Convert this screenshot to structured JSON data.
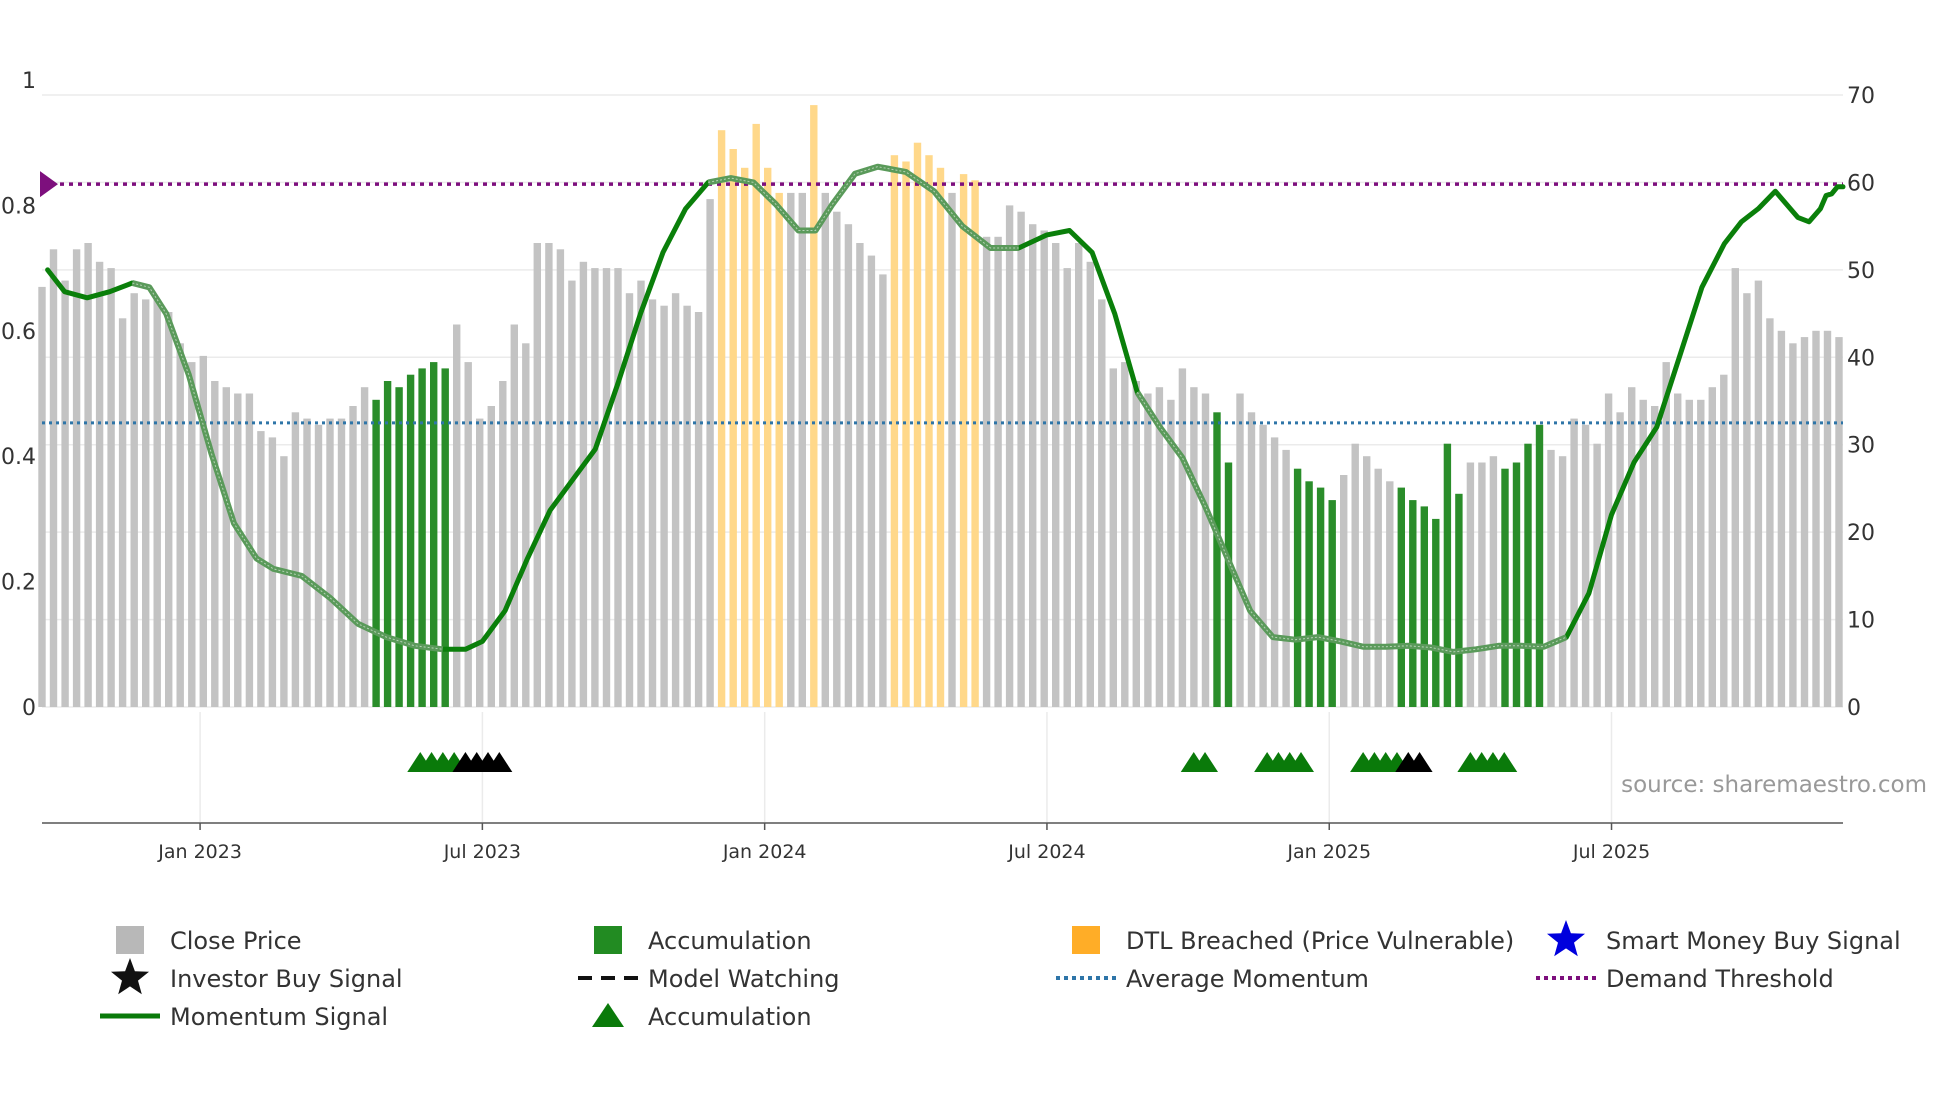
{
  "chart_data": {
    "type": "bar",
    "title": "",
    "source": "source: sharemaestro.com",
    "left_axis": {
      "min": 0,
      "max": 1,
      "ticks": [
        0,
        0.2,
        0.4,
        0.6,
        0.8,
        1
      ],
      "labels": [
        "0",
        "0.2",
        "0.4",
        "0.6",
        "0.8",
        "1"
      ]
    },
    "right_axis": {
      "min": 0,
      "max": 70,
      "ticks": [
        0,
        10,
        20,
        30,
        40,
        50,
        60,
        70
      ],
      "labels": [
        "0",
        "10",
        "20",
        "30",
        "40",
        "50",
        "60",
        "70"
      ]
    },
    "x_range": {
      "start": 2022.72,
      "end": 2025.91
    },
    "x_ticks": [
      {
        "label": "Jan 2023",
        "t": 2023.0
      },
      {
        "label": "Jul 2023",
        "t": 2023.5
      },
      {
        "label": "Jan 2024",
        "t": 2024.0
      },
      {
        "label": "Jul 2024",
        "t": 2024.5
      },
      {
        "label": "Jan 2025",
        "t": 2025.0
      },
      {
        "label": "Jul 2025",
        "t": 2025.5
      }
    ],
    "bar_states": [
      "close",
      "accumulation",
      "dtl_breached"
    ],
    "bars": [
      [
        0.67,
        "close"
      ],
      [
        0.73,
        "close"
      ],
      [
        0.68,
        "close"
      ],
      [
        0.73,
        "close"
      ],
      [
        0.74,
        "close"
      ],
      [
        0.71,
        "close"
      ],
      [
        0.7,
        "close"
      ],
      [
        0.62,
        "close"
      ],
      [
        0.66,
        "close"
      ],
      [
        0.65,
        "close"
      ],
      [
        0.65,
        "close"
      ],
      [
        0.63,
        "close"
      ],
      [
        0.58,
        "close"
      ],
      [
        0.55,
        "close"
      ],
      [
        0.56,
        "close"
      ],
      [
        0.52,
        "close"
      ],
      [
        0.51,
        "close"
      ],
      [
        0.5,
        "close"
      ],
      [
        0.5,
        "close"
      ],
      [
        0.44,
        "close"
      ],
      [
        0.43,
        "close"
      ],
      [
        0.4,
        "close"
      ],
      [
        0.47,
        "close"
      ],
      [
        0.46,
        "close"
      ],
      [
        0.45,
        "close"
      ],
      [
        0.46,
        "close"
      ],
      [
        0.46,
        "close"
      ],
      [
        0.48,
        "close"
      ],
      [
        0.51,
        "close"
      ],
      [
        0.49,
        "accumulation"
      ],
      [
        0.52,
        "accumulation"
      ],
      [
        0.51,
        "accumulation"
      ],
      [
        0.53,
        "accumulation"
      ],
      [
        0.54,
        "accumulation"
      ],
      [
        0.55,
        "accumulation"
      ],
      [
        0.54,
        "accumulation"
      ],
      [
        0.61,
        "close"
      ],
      [
        0.55,
        "close"
      ],
      [
        0.46,
        "close"
      ],
      [
        0.48,
        "close"
      ],
      [
        0.52,
        "close"
      ],
      [
        0.61,
        "close"
      ],
      [
        0.58,
        "close"
      ],
      [
        0.74,
        "close"
      ],
      [
        0.74,
        "close"
      ],
      [
        0.73,
        "close"
      ],
      [
        0.68,
        "close"
      ],
      [
        0.71,
        "close"
      ],
      [
        0.7,
        "close"
      ],
      [
        0.7,
        "close"
      ],
      [
        0.7,
        "close"
      ],
      [
        0.66,
        "close"
      ],
      [
        0.68,
        "close"
      ],
      [
        0.65,
        "close"
      ],
      [
        0.64,
        "close"
      ],
      [
        0.66,
        "close"
      ],
      [
        0.64,
        "close"
      ],
      [
        0.63,
        "close"
      ],
      [
        0.81,
        "close"
      ],
      [
        0.92,
        "dtl_breached"
      ],
      [
        0.89,
        "dtl_breached"
      ],
      [
        0.86,
        "dtl_breached"
      ],
      [
        0.93,
        "dtl_breached"
      ],
      [
        0.86,
        "dtl_breached"
      ],
      [
        0.82,
        "dtl_breached"
      ],
      [
        0.82,
        "close"
      ],
      [
        0.82,
        "close"
      ],
      [
        0.96,
        "dtl_breached"
      ],
      [
        0.82,
        "close"
      ],
      [
        0.79,
        "close"
      ],
      [
        0.77,
        "close"
      ],
      [
        0.74,
        "close"
      ],
      [
        0.72,
        "close"
      ],
      [
        0.69,
        "close"
      ],
      [
        0.88,
        "dtl_breached"
      ],
      [
        0.87,
        "dtl_breached"
      ],
      [
        0.9,
        "dtl_breached"
      ],
      [
        0.88,
        "dtl_breached"
      ],
      [
        0.86,
        "dtl_breached"
      ],
      [
        0.82,
        "close"
      ],
      [
        0.85,
        "dtl_breached"
      ],
      [
        0.84,
        "dtl_breached"
      ],
      [
        0.75,
        "close"
      ],
      [
        0.75,
        "close"
      ],
      [
        0.8,
        "close"
      ],
      [
        0.79,
        "close"
      ],
      [
        0.77,
        "close"
      ],
      [
        0.76,
        "close"
      ],
      [
        0.74,
        "close"
      ],
      [
        0.7,
        "close"
      ],
      [
        0.74,
        "close"
      ],
      [
        0.71,
        "close"
      ],
      [
        0.65,
        "close"
      ],
      [
        0.54,
        "close"
      ],
      [
        0.55,
        "close"
      ],
      [
        0.52,
        "close"
      ],
      [
        0.5,
        "close"
      ],
      [
        0.51,
        "close"
      ],
      [
        0.49,
        "close"
      ],
      [
        0.54,
        "close"
      ],
      [
        0.51,
        "close"
      ],
      [
        0.5,
        "close"
      ],
      [
        0.47,
        "accumulation"
      ],
      [
        0.39,
        "accumulation"
      ],
      [
        0.5,
        "close"
      ],
      [
        0.47,
        "close"
      ],
      [
        0.45,
        "close"
      ],
      [
        0.43,
        "close"
      ],
      [
        0.41,
        "close"
      ],
      [
        0.38,
        "accumulation"
      ],
      [
        0.36,
        "accumulation"
      ],
      [
        0.35,
        "accumulation"
      ],
      [
        0.33,
        "accumulation"
      ],
      [
        0.37,
        "close"
      ],
      [
        0.42,
        "close"
      ],
      [
        0.4,
        "close"
      ],
      [
        0.38,
        "close"
      ],
      [
        0.36,
        "close"
      ],
      [
        0.35,
        "accumulation"
      ],
      [
        0.33,
        "accumulation"
      ],
      [
        0.32,
        "accumulation"
      ],
      [
        0.3,
        "accumulation"
      ],
      [
        0.42,
        "accumulation"
      ],
      [
        0.34,
        "accumulation"
      ],
      [
        0.39,
        "close"
      ],
      [
        0.39,
        "close"
      ],
      [
        0.4,
        "close"
      ],
      [
        0.38,
        "accumulation"
      ],
      [
        0.39,
        "accumulation"
      ],
      [
        0.42,
        "accumulation"
      ],
      [
        0.45,
        "accumulation"
      ],
      [
        0.41,
        "close"
      ],
      [
        0.4,
        "close"
      ],
      [
        0.46,
        "close"
      ],
      [
        0.45,
        "close"
      ],
      [
        0.42,
        "close"
      ],
      [
        0.5,
        "close"
      ],
      [
        0.47,
        "close"
      ],
      [
        0.51,
        "close"
      ],
      [
        0.49,
        "close"
      ],
      [
        0.48,
        "close"
      ],
      [
        0.55,
        "close"
      ],
      [
        0.5,
        "close"
      ],
      [
        0.49,
        "close"
      ],
      [
        0.49,
        "close"
      ],
      [
        0.51,
        "close"
      ],
      [
        0.53,
        "close"
      ],
      [
        0.7,
        "close"
      ],
      [
        0.66,
        "close"
      ],
      [
        0.68,
        "close"
      ],
      [
        0.62,
        "close"
      ],
      [
        0.6,
        "close"
      ],
      [
        0.58,
        "close"
      ],
      [
        0.59,
        "close"
      ],
      [
        0.6,
        "close"
      ],
      [
        0.6,
        "close"
      ],
      [
        0.59,
        "close"
      ]
    ],
    "momentum_signal": [
      [
        2022.73,
        50
      ],
      [
        2022.76,
        47.5
      ],
      [
        2022.8,
        46.8
      ],
      [
        2022.84,
        47.5
      ],
      [
        2022.88,
        48.5
      ],
      [
        2022.91,
        48
      ],
      [
        2022.94,
        45
      ],
      [
        2022.98,
        38
      ],
      [
        2023.02,
        29
      ],
      [
        2023.06,
        21
      ],
      [
        2023.1,
        17
      ],
      [
        2023.13,
        15.8
      ],
      [
        2023.18,
        15
      ],
      [
        2023.23,
        12.5
      ],
      [
        2023.28,
        9.5
      ],
      [
        2023.33,
        8
      ],
      [
        2023.38,
        7
      ],
      [
        2023.43,
        6.6
      ],
      [
        2023.47,
        6.6
      ],
      [
        2023.5,
        7.5
      ],
      [
        2023.54,
        11
      ],
      [
        2023.58,
        17
      ],
      [
        2023.62,
        22.5
      ],
      [
        2023.66,
        26
      ],
      [
        2023.7,
        29.5
      ],
      [
        2023.74,
        37
      ],
      [
        2023.78,
        45
      ],
      [
        2023.82,
        52
      ],
      [
        2023.86,
        57
      ],
      [
        2023.9,
        60
      ],
      [
        2023.94,
        60.5
      ],
      [
        2023.98,
        60
      ],
      [
        2024.02,
        57.5
      ],
      [
        2024.06,
        54.5
      ],
      [
        2024.09,
        54.5
      ],
      [
        2024.12,
        57.5
      ],
      [
        2024.16,
        61
      ],
      [
        2024.2,
        61.8
      ],
      [
        2024.25,
        61.2
      ],
      [
        2024.3,
        59
      ],
      [
        2024.35,
        55
      ],
      [
        2024.4,
        52.5
      ],
      [
        2024.45,
        52.5
      ],
      [
        2024.5,
        54
      ],
      [
        2024.54,
        54.5
      ],
      [
        2024.58,
        52
      ],
      [
        2024.62,
        45
      ],
      [
        2024.66,
        36
      ],
      [
        2024.7,
        32
      ],
      [
        2024.74,
        28.5
      ],
      [
        2024.78,
        23
      ],
      [
        2024.82,
        17
      ],
      [
        2024.86,
        11
      ],
      [
        2024.9,
        8
      ],
      [
        2024.94,
        7.7
      ],
      [
        2024.98,
        8
      ],
      [
        2025.02,
        7.5
      ],
      [
        2025.06,
        6.9
      ],
      [
        2025.1,
        6.9
      ],
      [
        2025.14,
        7
      ],
      [
        2025.18,
        6.8
      ],
      [
        2025.22,
        6.3
      ],
      [
        2025.26,
        6.6
      ],
      [
        2025.3,
        7
      ],
      [
        2025.34,
        7
      ],
      [
        2025.38,
        6.9
      ],
      [
        2025.42,
        8
      ],
      [
        2025.46,
        13
      ],
      [
        2025.5,
        22
      ],
      [
        2025.54,
        28
      ],
      [
        2025.58,
        32
      ],
      [
        2025.62,
        40
      ],
      [
        2025.66,
        48
      ],
      [
        2025.7,
        53
      ],
      [
        2025.73,
        55.5
      ],
      [
        2025.76,
        57
      ],
      [
        2025.79,
        59
      ],
      [
        2025.81,
        57.5
      ],
      [
        2025.83,
        56
      ],
      [
        2025.85,
        55.5
      ],
      [
        2025.87,
        57
      ],
      [
        2025.88,
        58.5
      ],
      [
        2025.89,
        58.7
      ],
      [
        2025.9,
        59.5
      ],
      [
        2025.91,
        59.5
      ]
    ],
    "dim_segments": [
      [
        2022.88,
        2023.46
      ],
      [
        2023.9,
        2024.47
      ],
      [
        2024.66,
        2025.42
      ]
    ],
    "average_momentum": 32.5,
    "demand_threshold": 59.8,
    "signals": [
      {
        "t": 2023.39,
        "type": "accumulation"
      },
      {
        "t": 2023.41,
        "type": "accumulation"
      },
      {
        "t": 2023.43,
        "type": "accumulation"
      },
      {
        "t": 2023.45,
        "type": "accumulation"
      },
      {
        "t": 2023.47,
        "type": "investor_buy"
      },
      {
        "t": 2023.49,
        "type": "investor_buy"
      },
      {
        "t": 2023.51,
        "type": "investor_buy"
      },
      {
        "t": 2023.53,
        "type": "investor_buy"
      },
      {
        "t": 2024.76,
        "type": "accumulation"
      },
      {
        "t": 2024.78,
        "type": "accumulation"
      },
      {
        "t": 2024.89,
        "type": "accumulation"
      },
      {
        "t": 2024.91,
        "type": "accumulation"
      },
      {
        "t": 2024.93,
        "type": "accumulation"
      },
      {
        "t": 2024.95,
        "type": "accumulation"
      },
      {
        "t": 2025.06,
        "type": "accumulation"
      },
      {
        "t": 2025.08,
        "type": "accumulation"
      },
      {
        "t": 2025.1,
        "type": "accumulation"
      },
      {
        "t": 2025.12,
        "type": "accumulation"
      },
      {
        "t": 2025.14,
        "type": "investor_buy"
      },
      {
        "t": 2025.16,
        "type": "investor_buy"
      },
      {
        "t": 2025.25,
        "type": "accumulation"
      },
      {
        "t": 2025.27,
        "type": "accumulation"
      },
      {
        "t": 2025.29,
        "type": "accumulation"
      },
      {
        "t": 2025.31,
        "type": "accumulation"
      }
    ],
    "legend": [
      {
        "label": "Close Price",
        "symbol": "square",
        "color": "#b8b8b8"
      },
      {
        "label": "Accumulation",
        "symbol": "square",
        "color": "#228b22"
      },
      {
        "label": "DTL Breached (Price Vulnerable)",
        "symbol": "square",
        "color": "#ffad27"
      },
      {
        "label": "Smart Money Buy Signal",
        "symbol": "star",
        "color": "#0000dd"
      },
      {
        "label": "Investor Buy Signal",
        "symbol": "star",
        "color": "#111111"
      },
      {
        "label": "Model Watching",
        "symbol": "dash",
        "color": "#111111"
      },
      {
        "label": "Average Momentum",
        "symbol": "dotted",
        "color": "#2e75a8"
      },
      {
        "label": "Demand Threshold",
        "symbol": "dotted",
        "color": "#7d0f7d"
      },
      {
        "label": "Momentum Signal",
        "symbol": "line",
        "color": "#0a7a0a"
      },
      {
        "label": "Accumulation",
        "symbol": "triangle",
        "color": "#0a7a0a"
      }
    ]
  },
  "colors": {
    "close": "#c3c3c3",
    "accumulation": "#2a8d2a",
    "dtl_breached": "#ffd88a",
    "momentum": "#0a7f0a",
    "momentum_dim": "#5a9a5a",
    "average": "#2e75a8",
    "threshold": "#7d0f7d",
    "signal_acc": "#0a7a0a",
    "signal_inv": "#000000",
    "grid": "#ebebeb",
    "axis": "#555555"
  }
}
